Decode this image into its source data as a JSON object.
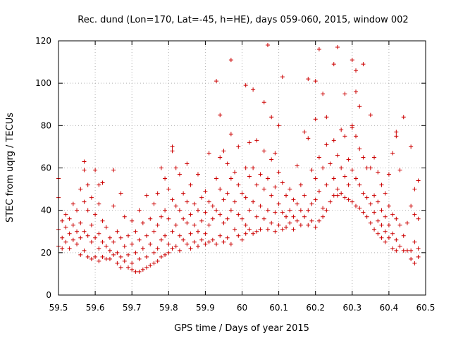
{
  "chart_data": {
    "type": "scatter",
    "title": "Rec. dund (Lon=170, Lat=-45, h=HE), days 059-060, 2015, window 002",
    "xlabel": "GPS time / Days of year 2015",
    "ylabel": "STEC from uqrg / TECUs",
    "xlim": [
      59.5,
      60.5
    ],
    "ylim": [
      0,
      120
    ],
    "xticks": [
      "59.5",
      "59.6",
      "59.7",
      "59.8",
      "59.9",
      "60",
      "60.1",
      "60.2",
      "60.3",
      "60.4",
      "60.5"
    ],
    "yticks": [
      "0",
      "20",
      "40",
      "60",
      "80",
      "100",
      "120"
    ],
    "grid": true,
    "marker": "+",
    "color": "#cc0000",
    "points": [
      [
        59.5,
        55
      ],
      [
        59.5,
        46
      ],
      [
        59.5,
        31
      ],
      [
        59.5,
        23
      ],
      [
        59.51,
        35
      ],
      [
        59.51,
        27
      ],
      [
        59.51,
        22
      ],
      [
        59.52,
        38
      ],
      [
        59.52,
        32
      ],
      [
        59.52,
        25
      ],
      [
        59.53,
        36
      ],
      [
        59.53,
        29
      ],
      [
        59.53,
        22
      ],
      [
        59.54,
        43
      ],
      [
        59.54,
        33
      ],
      [
        59.54,
        26
      ],
      [
        59.55,
        40
      ],
      [
        59.55,
        30
      ],
      [
        59.55,
        24
      ],
      [
        59.56,
        50
      ],
      [
        59.56,
        34
      ],
      [
        59.56,
        27
      ],
      [
        59.56,
        19
      ],
      [
        59.57,
        63
      ],
      [
        59.57,
        59
      ],
      [
        59.57,
        44
      ],
      [
        59.57,
        30
      ],
      [
        59.57,
        21
      ],
      [
        59.58,
        52
      ],
      [
        59.58,
        40
      ],
      [
        59.58,
        28
      ],
      [
        59.58,
        18
      ],
      [
        59.59,
        46
      ],
      [
        59.59,
        33
      ],
      [
        59.59,
        25
      ],
      [
        59.59,
        17
      ],
      [
        59.6,
        59
      ],
      [
        59.6,
        38
      ],
      [
        59.6,
        27
      ],
      [
        59.6,
        18
      ],
      [
        59.61,
        52
      ],
      [
        59.61,
        43
      ],
      [
        59.61,
        29
      ],
      [
        59.61,
        22
      ],
      [
        59.61,
        16
      ],
      [
        59.62,
        53
      ],
      [
        59.62,
        35
      ],
      [
        59.62,
        25
      ],
      [
        59.62,
        18
      ],
      [
        59.63,
        32
      ],
      [
        59.63,
        23
      ],
      [
        59.63,
        17
      ],
      [
        59.64,
        27
      ],
      [
        59.64,
        21
      ],
      [
        59.64,
        17
      ],
      [
        59.65,
        59
      ],
      [
        59.65,
        42
      ],
      [
        59.65,
        25
      ],
      [
        59.65,
        19
      ],
      [
        59.66,
        30
      ],
      [
        59.66,
        20
      ],
      [
        59.66,
        15
      ],
      [
        59.67,
        48
      ],
      [
        59.67,
        27
      ],
      [
        59.67,
        18
      ],
      [
        59.67,
        13
      ],
      [
        59.68,
        37
      ],
      [
        59.68,
        23
      ],
      [
        59.68,
        16
      ],
      [
        59.69,
        28
      ],
      [
        59.69,
        19
      ],
      [
        59.69,
        13
      ],
      [
        59.7,
        35
      ],
      [
        59.7,
        24
      ],
      [
        59.7,
        15
      ],
      [
        59.7,
        12
      ],
      [
        59.71,
        30
      ],
      [
        59.71,
        20
      ],
      [
        59.71,
        11
      ],
      [
        59.72,
        40
      ],
      [
        59.72,
        26
      ],
      [
        59.72,
        17
      ],
      [
        59.72,
        11
      ],
      [
        59.73,
        34
      ],
      [
        59.73,
        22
      ],
      [
        59.73,
        12
      ],
      [
        59.74,
        47
      ],
      [
        59.74,
        28
      ],
      [
        59.74,
        18
      ],
      [
        59.74,
        13
      ],
      [
        59.75,
        36
      ],
      [
        59.75,
        24
      ],
      [
        59.75,
        14
      ],
      [
        59.76,
        43
      ],
      [
        59.76,
        30
      ],
      [
        59.76,
        20
      ],
      [
        59.76,
        15
      ],
      [
        59.77,
        48
      ],
      [
        59.77,
        33
      ],
      [
        59.77,
        22
      ],
      [
        59.77,
        16
      ],
      [
        59.78,
        60
      ],
      [
        59.78,
        37
      ],
      [
        59.78,
        26
      ],
      [
        59.78,
        18
      ],
      [
        59.79,
        55
      ],
      [
        59.79,
        40
      ],
      [
        59.79,
        28
      ],
      [
        59.79,
        19
      ],
      [
        59.8,
        50
      ],
      [
        59.8,
        36
      ],
      [
        59.8,
        24
      ],
      [
        59.8,
        20
      ],
      [
        59.81,
        70
      ],
      [
        59.81,
        68
      ],
      [
        59.81,
        45
      ],
      [
        59.81,
        30
      ],
      [
        59.81,
        22
      ],
      [
        59.82,
        60
      ],
      [
        59.82,
        42
      ],
      [
        59.82,
        33
      ],
      [
        59.82,
        23
      ],
      [
        59.83,
        57
      ],
      [
        59.83,
        40
      ],
      [
        59.83,
        28
      ],
      [
        59.83,
        21
      ],
      [
        59.84,
        48
      ],
      [
        59.84,
        36
      ],
      [
        59.84,
        26
      ],
      [
        59.85,
        62
      ],
      [
        59.85,
        44
      ],
      [
        59.85,
        34
      ],
      [
        59.85,
        24
      ],
      [
        59.86,
        52
      ],
      [
        59.86,
        38
      ],
      [
        59.86,
        29
      ],
      [
        59.86,
        22
      ],
      [
        59.87,
        43
      ],
      [
        59.87,
        33
      ],
      [
        59.87,
        25
      ],
      [
        59.88,
        57
      ],
      [
        59.88,
        40
      ],
      [
        59.88,
        30
      ],
      [
        59.88,
        23
      ],
      [
        59.89,
        46
      ],
      [
        59.89,
        35
      ],
      [
        59.89,
        26
      ],
      [
        59.9,
        49
      ],
      [
        59.9,
        39
      ],
      [
        59.9,
        29
      ],
      [
        59.9,
        24
      ],
      [
        59.91,
        67
      ],
      [
        59.91,
        44
      ],
      [
        59.91,
        33
      ],
      [
        59.91,
        25
      ],
      [
        59.92,
        42
      ],
      [
        59.92,
        36
      ],
      [
        59.92,
        26
      ],
      [
        59.93,
        101
      ],
      [
        59.93,
        55
      ],
      [
        59.93,
        40
      ],
      [
        59.93,
        24
      ],
      [
        59.94,
        85
      ],
      [
        59.94,
        65
      ],
      [
        59.94,
        50
      ],
      [
        59.94,
        38
      ],
      [
        59.94,
        28
      ],
      [
        59.95,
        68
      ],
      [
        59.95,
        45
      ],
      [
        59.95,
        34
      ],
      [
        59.95,
        25
      ],
      [
        59.96,
        62
      ],
      [
        59.96,
        48
      ],
      [
        59.96,
        36
      ],
      [
        59.96,
        27
      ],
      [
        59.97,
        111
      ],
      [
        59.97,
        76
      ],
      [
        59.97,
        55
      ],
      [
        59.97,
        40
      ],
      [
        59.97,
        24
      ],
      [
        59.98,
        58
      ],
      [
        59.98,
        44
      ],
      [
        59.98,
        31
      ],
      [
        59.99,
        70
      ],
      [
        59.99,
        52
      ],
      [
        59.99,
        38
      ],
      [
        59.99,
        28
      ],
      [
        60.0,
        48
      ],
      [
        60.0,
        36
      ],
      [
        60.0,
        26
      ],
      [
        60.01,
        99
      ],
      [
        60.01,
        60
      ],
      [
        60.01,
        46
      ],
      [
        60.01,
        33
      ],
      [
        60.01,
        29
      ],
      [
        60.02,
        72
      ],
      [
        60.02,
        56
      ],
      [
        60.02,
        40
      ],
      [
        60.02,
        31
      ],
      [
        60.03,
        97
      ],
      [
        60.03,
        60
      ],
      [
        60.03,
        44
      ],
      [
        60.03,
        29
      ],
      [
        60.04,
        73
      ],
      [
        60.04,
        52
      ],
      [
        60.04,
        37
      ],
      [
        60.04,
        30
      ],
      [
        60.05,
        57
      ],
      [
        60.05,
        42
      ],
      [
        60.05,
        31
      ],
      [
        60.06,
        91
      ],
      [
        60.06,
        68
      ],
      [
        60.06,
        50
      ],
      [
        60.06,
        36
      ],
      [
        60.07,
        118
      ],
      [
        60.07,
        55
      ],
      [
        60.07,
        40
      ],
      [
        60.07,
        31
      ],
      [
        60.08,
        84
      ],
      [
        60.08,
        64
      ],
      [
        60.08,
        47
      ],
      [
        60.08,
        34
      ],
      [
        60.09,
        67
      ],
      [
        60.09,
        51
      ],
      [
        60.09,
        39
      ],
      [
        60.09,
        30
      ],
      [
        60.1,
        80
      ],
      [
        60.1,
        58
      ],
      [
        60.1,
        43
      ],
      [
        60.1,
        33
      ],
      [
        60.11,
        103
      ],
      [
        60.11,
        53
      ],
      [
        60.11,
        39
      ],
      [
        60.11,
        31
      ],
      [
        60.12,
        47
      ],
      [
        60.12,
        37
      ],
      [
        60.12,
        32
      ],
      [
        60.13,
        50
      ],
      [
        60.13,
        40
      ],
      [
        60.13,
        34
      ],
      [
        60.14,
        45
      ],
      [
        60.14,
        37
      ],
      [
        60.14,
        31
      ],
      [
        60.15,
        61
      ],
      [
        60.15,
        43
      ],
      [
        60.15,
        35
      ],
      [
        60.16,
        52
      ],
      [
        60.16,
        40
      ],
      [
        60.16,
        33
      ],
      [
        60.17,
        77
      ],
      [
        60.17,
        47
      ],
      [
        60.17,
        37
      ],
      [
        60.18,
        102
      ],
      [
        60.18,
        74
      ],
      [
        60.18,
        40
      ],
      [
        60.18,
        33
      ],
      [
        60.19,
        59
      ],
      [
        60.19,
        43
      ],
      [
        60.19,
        35
      ],
      [
        60.2,
        101
      ],
      [
        60.2,
        83
      ],
      [
        60.2,
        55
      ],
      [
        60.2,
        45
      ],
      [
        60.2,
        32
      ],
      [
        60.21,
        116
      ],
      [
        60.21,
        65
      ],
      [
        60.21,
        49
      ],
      [
        60.21,
        35
      ],
      [
        60.22,
        95
      ],
      [
        60.22,
        60
      ],
      [
        60.22,
        41
      ],
      [
        60.22,
        37
      ],
      [
        60.23,
        84
      ],
      [
        60.23,
        71
      ],
      [
        60.23,
        52
      ],
      [
        60.23,
        40
      ],
      [
        60.24,
        62
      ],
      [
        60.24,
        44
      ],
      [
        60.25,
        109
      ],
      [
        60.25,
        73
      ],
      [
        60.25,
        55
      ],
      [
        60.25,
        47
      ],
      [
        60.26,
        117
      ],
      [
        60.26,
        66
      ],
      [
        60.26,
        50
      ],
      [
        60.26,
        47
      ],
      [
        60.27,
        78
      ],
      [
        60.27,
        60
      ],
      [
        60.27,
        48
      ],
      [
        60.28,
        95
      ],
      [
        60.28,
        75
      ],
      [
        60.28,
        56
      ],
      [
        60.28,
        46
      ],
      [
        60.29,
        64
      ],
      [
        60.29,
        52
      ],
      [
        60.29,
        45
      ],
      [
        60.3,
        111
      ],
      [
        60.3,
        80
      ],
      [
        60.3,
        79
      ],
      [
        60.3,
        59
      ],
      [
        60.3,
        44
      ],
      [
        60.31,
        106
      ],
      [
        60.31,
        96
      ],
      [
        60.31,
        75
      ],
      [
        60.31,
        55
      ],
      [
        60.31,
        42
      ],
      [
        60.32,
        89
      ],
      [
        60.32,
        69
      ],
      [
        60.32,
        52
      ],
      [
        60.32,
        41
      ],
      [
        60.33,
        109
      ],
      [
        60.33,
        65
      ],
      [
        60.33,
        48
      ],
      [
        60.33,
        39
      ],
      [
        60.34,
        60
      ],
      [
        60.34,
        46
      ],
      [
        60.34,
        37
      ],
      [
        60.35,
        85
      ],
      [
        60.35,
        60
      ],
      [
        60.35,
        43
      ],
      [
        60.35,
        34
      ],
      [
        60.36,
        65
      ],
      [
        60.36,
        47
      ],
      [
        60.36,
        39
      ],
      [
        60.36,
        31
      ],
      [
        60.37,
        58
      ],
      [
        60.37,
        44
      ],
      [
        60.37,
        35
      ],
      [
        60.37,
        29
      ],
      [
        60.38,
        52
      ],
      [
        60.38,
        40
      ],
      [
        60.38,
        33
      ],
      [
        60.38,
        27
      ],
      [
        60.39,
        48
      ],
      [
        60.39,
        37
      ],
      [
        60.39,
        30
      ],
      [
        60.39,
        25
      ],
      [
        60.4,
        57
      ],
      [
        60.4,
        42
      ],
      [
        60.4,
        33
      ],
      [
        60.4,
        27
      ],
      [
        60.41,
        67
      ],
      [
        60.41,
        38
      ],
      [
        60.41,
        29
      ],
      [
        60.41,
        22
      ],
      [
        60.42,
        77
      ],
      [
        60.42,
        75
      ],
      [
        60.42,
        36
      ],
      [
        60.42,
        26
      ],
      [
        60.42,
        21
      ],
      [
        60.43,
        59
      ],
      [
        60.43,
        33
      ],
      [
        60.43,
        23
      ],
      [
        60.44,
        84
      ],
      [
        60.44,
        28
      ],
      [
        60.44,
        21
      ],
      [
        60.45,
        21
      ],
      [
        60.45,
        34
      ],
      [
        60.46,
        70
      ],
      [
        60.46,
        42
      ],
      [
        60.46,
        21
      ],
      [
        60.46,
        17
      ],
      [
        60.47,
        50
      ],
      [
        60.47,
        38
      ],
      [
        60.47,
        25
      ],
      [
        60.47,
        15
      ],
      [
        60.48,
        54
      ],
      [
        60.48,
        36
      ],
      [
        60.48,
        22
      ],
      [
        60.48,
        18
      ]
    ]
  }
}
